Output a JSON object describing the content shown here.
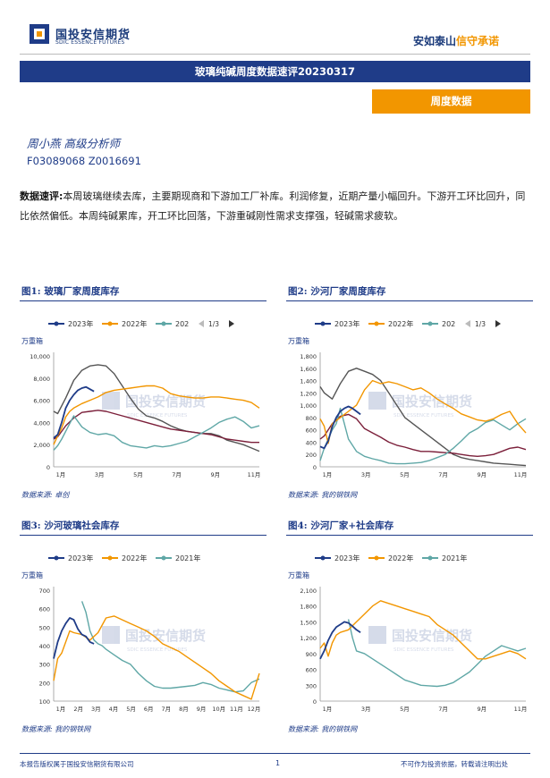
{
  "header": {
    "logo_cn": "国投安信期货",
    "logo_en": "SDIC ESSENCE FUTURES",
    "slogan_a": "安如泰山",
    "slogan_b": "信守承诺"
  },
  "report_title": "玻璃纯碱周度数据速评20230317",
  "section_tag": "周度数据",
  "analyst": "周小燕  高级分析师",
  "cert": "F03089068  Z0016691",
  "summary_label": "数据速评:",
  "summary_text": "本周玻璃继续去库，主要期现商和下游加工厂补库。利润修复，近期产量小幅回升。下游开工环比回升，同比依然偏低。本周纯碱累库，开工环比回落，下游重碱刚性需求支撑强，轻碱需求疲软。",
  "watermark": "国投安信期货",
  "watermark_en": "SDIC ESSENCE FUTURES",
  "colors": {
    "navy": "#1f3c88",
    "orange": "#f29600",
    "teal": "#5fa7a6",
    "maroon": "#7b1f3a",
    "gray": "#555555",
    "blue2": "#1a52a8"
  },
  "charts": [
    {
      "title": "图1:  玻璃厂家周度库存",
      "unit": "万重箱",
      "source": "数据来源:  卓创",
      "legend": [
        "2023年",
        "2022年",
        "202"
      ],
      "pager": "1/3",
      "xticks": [
        "1月",
        "3月",
        "5月",
        "7月",
        "9月",
        "11月"
      ],
      "chart_data": {
        "type": "line",
        "ylim": [
          0,
          10000
        ],
        "yticks": [
          "0",
          "2,000",
          "4,000",
          "6,000",
          "8,000",
          "10,000"
        ],
        "xmax": 52,
        "series": [
          {
            "name": "2023年",
            "color": "navy",
            "x": [
              1,
              2,
              3,
              4,
              5,
              6,
              7,
              8,
              9,
              10,
              11
            ],
            "values": [
              2600,
              2900,
              4000,
              5300,
              6000,
              6500,
              6900,
              7100,
              7200,
              7000,
              6800
            ]
          },
          {
            "name": "2022年",
            "color": "orange",
            "x": [
              1,
              2,
              3,
              4,
              5,
              6,
              7,
              8,
              10,
              12,
              14,
              16,
              18,
              20,
              22,
              24,
              26,
              28,
              30,
              32,
              34,
              36,
              38,
              40,
              42,
              44,
              46,
              48,
              50,
              52
            ],
            "values": [
              2000,
              2800,
              3500,
              4500,
              5000,
              5300,
              5500,
              5700,
              6000,
              6300,
              6700,
              6900,
              7000,
              7100,
              7200,
              7300,
              7300,
              7100,
              6600,
              6400,
              6300,
              6200,
              6200,
              6300,
              6300,
              6200,
              6100,
              6000,
              5800,
              5300
            ]
          },
          {
            "name": "202",
            "color": "teal",
            "x": [
              1,
              2,
              3,
              4,
              5,
              6,
              8,
              10,
              12,
              14,
              16,
              18,
              20,
              22,
              24,
              26,
              28,
              30,
              32,
              34,
              36,
              38,
              40,
              42,
              44,
              46,
              48,
              50,
              52
            ],
            "values": [
              1500,
              1900,
              2500,
              3200,
              3900,
              4600,
              3600,
              3100,
              2900,
              3000,
              2800,
              2200,
              1900,
              1800,
              1700,
              1900,
              1800,
              1900,
              2100,
              2300,
              2700,
              3100,
              3500,
              4000,
              4300,
              4500,
              4100,
              3500,
              3700
            ]
          },
          {
            "name": "",
            "color": "maroon",
            "x": [
              1,
              2,
              4,
              6,
              8,
              10,
              12,
              14,
              16,
              18,
              20,
              22,
              24,
              26,
              28,
              30,
              32,
              34,
              36,
              38,
              40,
              42,
              44,
              46,
              48,
              50,
              52
            ],
            "values": [
              2500,
              2700,
              3700,
              4400,
              4900,
              5000,
              5100,
              5000,
              4800,
              4600,
              4400,
              4200,
              4000,
              3800,
              3600,
              3400,
              3300,
              3200,
              3100,
              3000,
              2900,
              2700,
              2500,
              2400,
              2300,
              2200,
              2200
            ]
          },
          {
            "name": "",
            "color": "gray",
            "x": [
              1,
              2,
              4,
              6,
              8,
              10,
              12,
              14,
              16,
              18,
              20,
              22,
              24,
              26,
              28,
              30,
              32,
              34,
              36,
              38,
              40,
              42,
              44,
              46,
              48,
              50,
              52
            ],
            "values": [
              5000,
              4800,
              6200,
              7800,
              8700,
              9100,
              9200,
              9100,
              8400,
              7300,
              6200,
              5200,
              4600,
              4400,
              4100,
              3700,
              3400,
              3200,
              3100,
              3000,
              3000,
              2800,
              2400,
              2200,
              2000,
              1700,
              1400
            ]
          }
        ]
      }
    },
    {
      "title": "图2:  沙河厂家周度库存",
      "unit": "万重箱",
      "source": "数据来源:  我的钢铁网",
      "legend": [
        "2023年",
        "2022年",
        "202"
      ],
      "pager": "1/3",
      "xticks": [
        "1月",
        "3月",
        "5月",
        "7月",
        "9月",
        "11月"
      ],
      "chart_data": {
        "type": "line",
        "ylim": [
          0,
          1800
        ],
        "yticks": [
          "0",
          "200",
          "400",
          "600",
          "800",
          "1,000",
          "1,200",
          "1,400",
          "1,600",
          "1,800"
        ],
        "xmax": 52,
        "series": [
          {
            "name": "2023年",
            "color": "navy",
            "x": [
              1,
              2,
              3,
              4,
              5,
              6,
              7,
              8,
              9,
              10,
              11
            ],
            "values": [
              330,
              300,
              420,
              650,
              800,
              900,
              950,
              980,
              950,
              900,
              850
            ]
          },
          {
            "name": "2022年",
            "color": "orange",
            "x": [
              1,
              2,
              3,
              4,
              6,
              8,
              10,
              12,
              14,
              16,
              18,
              20,
              22,
              24,
              26,
              28,
              30,
              32,
              34,
              36,
              38,
              40,
              42,
              44,
              46,
              48,
              50,
              52
            ],
            "values": [
              780,
              660,
              380,
              700,
              800,
              900,
              1000,
              1250,
              1400,
              1350,
              1380,
              1350,
              1300,
              1250,
              1280,
              1200,
              1100,
              1020,
              950,
              860,
              810,
              760,
              740,
              780,
              850,
              900,
              700,
              550
            ]
          },
          {
            "name": "202",
            "color": "teal",
            "x": [
              1,
              2,
              3,
              4,
              5,
              6,
              8,
              10,
              12,
              14,
              16,
              18,
              20,
              22,
              24,
              26,
              28,
              30,
              32,
              34,
              36,
              38,
              40,
              42,
              44,
              46,
              48,
              50,
              52
            ],
            "values": [
              100,
              300,
              450,
              600,
              700,
              950,
              450,
              250,
              170,
              130,
              100,
              60,
              50,
              50,
              60,
              70,
              100,
              150,
              200,
              300,
              420,
              550,
              620,
              720,
              760,
              680,
              600,
              700,
              780
            ]
          },
          {
            "name": "",
            "color": "maroon",
            "x": [
              1,
              2,
              4,
              6,
              8,
              10,
              12,
              14,
              16,
              18,
              20,
              22,
              24,
              26,
              28,
              30,
              32,
              34,
              36,
              38,
              40,
              42,
              44,
              46,
              48,
              50,
              52
            ],
            "values": [
              450,
              500,
              700,
              820,
              850,
              780,
              620,
              550,
              480,
              400,
              350,
              320,
              280,
              250,
              250,
              240,
              230,
              220,
              200,
              180,
              170,
              180,
              200,
              250,
              300,
              320,
              280
            ]
          },
          {
            "name": "",
            "color": "gray",
            "x": [
              1,
              2,
              4,
              6,
              8,
              10,
              12,
              14,
              16,
              18,
              20,
              22,
              24,
              26,
              28,
              30,
              32,
              34,
              36,
              38,
              40,
              42,
              44,
              46,
              48,
              50,
              52
            ],
            "values": [
              1300,
              1200,
              1100,
              1350,
              1550,
              1600,
              1550,
              1500,
              1400,
              1200,
              1000,
              800,
              700,
              600,
              500,
              400,
              300,
              200,
              150,
              120,
              100,
              80,
              60,
              50,
              40,
              30,
              20
            ]
          }
        ]
      }
    },
    {
      "title": "图3:  沙河玻璃社会库存",
      "unit": "万重箱",
      "source": "数据来源:  我的钢铁网",
      "legend": [
        "2023年",
        "2022年",
        "2021年"
      ],
      "pager": "",
      "xticks": [
        "1月",
        "2月",
        "3月",
        "4月",
        "5月",
        "6月",
        "7月",
        "8月",
        "9月",
        "10月",
        "11月",
        "12月"
      ],
      "chart_data": {
        "type": "line",
        "ylim": [
          100,
          700
        ],
        "yticks": [
          "100",
          "200",
          "300",
          "400",
          "500",
          "600",
          "700"
        ],
        "xmax": 52,
        "series": [
          {
            "name": "2023年",
            "color": "navy",
            "x": [
              1,
              2,
              3,
              4,
              5,
              6,
              7,
              8,
              9,
              10,
              11
            ],
            "values": [
              330,
              420,
              480,
              520,
              550,
              540,
              490,
              460,
              450,
              420,
              410
            ]
          },
          {
            "name": "2022年",
            "color": "orange",
            "x": [
              1,
              2,
              3,
              4,
              5,
              6,
              8,
              10,
              12,
              14,
              16,
              18,
              20,
              22,
              24,
              26,
              28,
              30,
              32,
              34,
              36,
              38,
              40,
              42,
              44,
              46,
              48,
              50,
              52
            ],
            "values": [
              210,
              330,
              360,
              420,
              480,
              470,
              460,
              430,
              470,
              550,
              560,
              540,
              520,
              500,
              480,
              450,
              410,
              390,
              370,
              340,
              310,
              280,
              250,
              210,
              180,
              150,
              130,
              110,
              250
            ]
          },
          {
            "name": "2021年",
            "color": "teal",
            "x": [
              8,
              9,
              10,
              11,
              12,
              13,
              14,
              16,
              18,
              20,
              22,
              24,
              26,
              28,
              30,
              32,
              34,
              36,
              38,
              40,
              42,
              44,
              46,
              48,
              50,
              52
            ],
            "values": [
              640,
              580,
              480,
              430,
              410,
              400,
              380,
              350,
              320,
              300,
              250,
              210,
              180,
              170,
              170,
              175,
              180,
              185,
              200,
              190,
              170,
              160,
              150,
              155,
              200,
              220
            ]
          }
        ]
      }
    },
    {
      "title": "图4:  沙河厂家+社会库存",
      "unit": "万重箱",
      "source": "数据来源:  我的钢铁网",
      "legend": [
        "2023年",
        "2022年",
        "2021年"
      ],
      "pager": "",
      "xticks": [
        "1月",
        "3月",
        "5月",
        "7月",
        "9月",
        "11月"
      ],
      "chart_data": {
        "type": "line",
        "ylim": [
          0,
          2100
        ],
        "yticks": [
          "0",
          "300",
          "600",
          "900",
          "1,200",
          "1,500",
          "1,800",
          "2,100"
        ],
        "xmax": 52,
        "series": [
          {
            "name": "2023年",
            "color": "navy",
            "x": [
              1,
              2,
              3,
              4,
              5,
              6,
              7,
              8,
              9,
              10,
              11
            ],
            "values": [
              800,
              950,
              1150,
              1300,
              1400,
              1450,
              1500,
              1480,
              1420,
              1350,
              1300
            ]
          },
          {
            "name": "2022年",
            "color": "orange",
            "x": [
              1,
              2,
              3,
              4,
              5,
              6,
              8,
              10,
              12,
              14,
              16,
              18,
              20,
              22,
              24,
              26,
              28,
              30,
              32,
              34,
              36,
              38,
              40,
              42,
              44,
              46,
              48,
              50,
              52
            ],
            "values": [
              1000,
              1100,
              850,
              1100,
              1250,
              1300,
              1350,
              1500,
              1650,
              1800,
              1900,
              1850,
              1800,
              1750,
              1700,
              1650,
              1600,
              1450,
              1350,
              1250,
              1100,
              950,
              800,
              800,
              850,
              900,
              950,
              900,
              800
            ]
          },
          {
            "name": "2021年",
            "color": "teal",
            "x": [
              8,
              9,
              10,
              12,
              14,
              16,
              18,
              20,
              22,
              24,
              26,
              28,
              30,
              32,
              34,
              36,
              38,
              40,
              42,
              44,
              46,
              48,
              50,
              52
            ],
            "values": [
              1550,
              1200,
              950,
              900,
              800,
              700,
              600,
              500,
              400,
              350,
              300,
              290,
              280,
              300,
              350,
              450,
              550,
              700,
              850,
              950,
              1050,
              1000,
              950,
              1000
            ]
          }
        ]
      }
    }
  ],
  "footer": {
    "left": "本报告版权属于国投安信期货有限公司",
    "page": "1",
    "right": "不可作为投资依据，转载请注明出处"
  }
}
